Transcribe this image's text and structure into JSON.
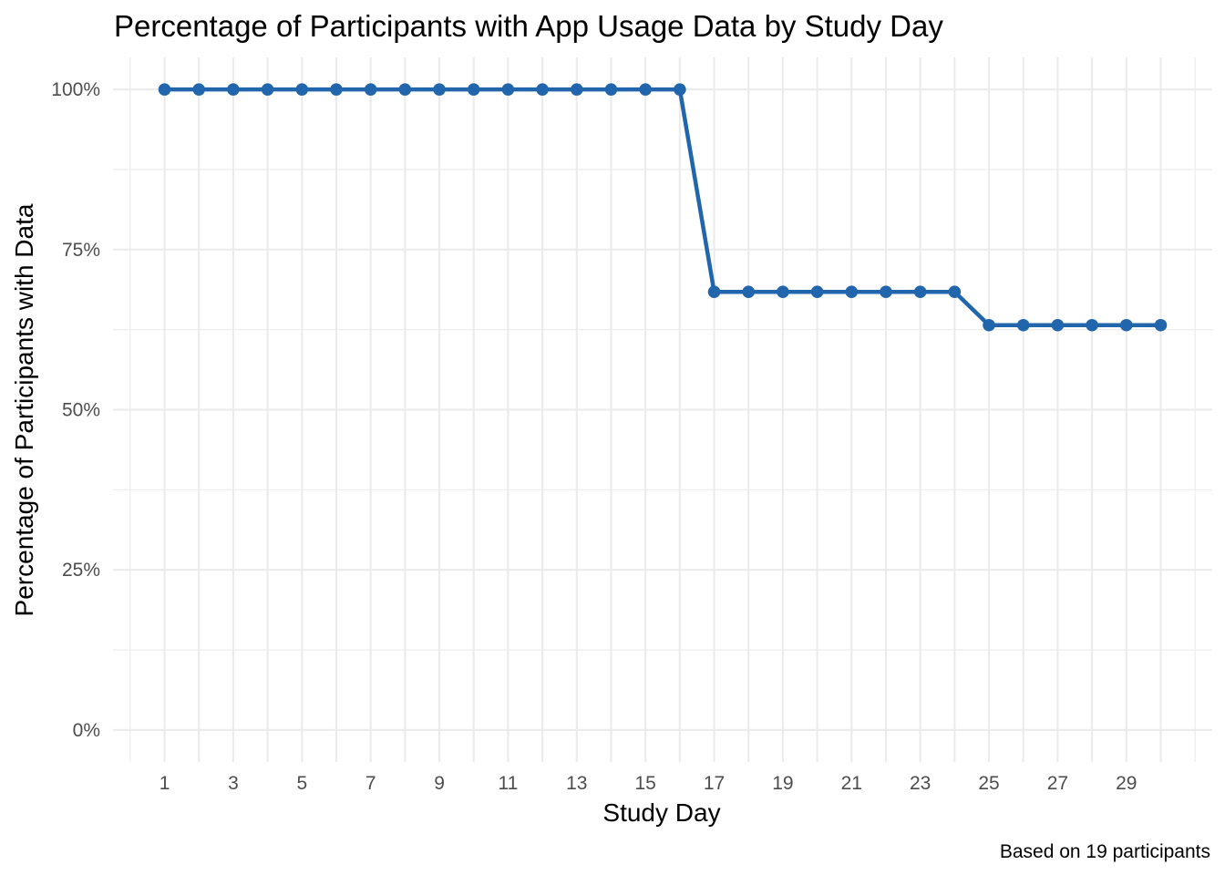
{
  "chart_data": {
    "type": "line",
    "title": "Percentage of Participants with App Usage Data by Study Day",
    "xlabel": "Study Day",
    "ylabel": "Percentage of Participants with Data",
    "caption": "Based on 19 participants",
    "x": [
      1,
      2,
      3,
      4,
      5,
      6,
      7,
      8,
      9,
      10,
      11,
      12,
      13,
      14,
      15,
      16,
      17,
      18,
      19,
      20,
      21,
      22,
      23,
      24,
      25,
      26,
      27,
      28,
      29,
      30
    ],
    "series": [
      {
        "values": [
          100,
          100,
          100,
          100,
          100,
          100,
          100,
          100,
          100,
          100,
          100,
          100,
          100,
          100,
          100,
          100,
          68.4,
          68.4,
          68.4,
          68.4,
          68.4,
          68.4,
          68.4,
          68.4,
          63.2,
          63.2,
          63.2,
          63.2,
          63.2,
          63.2
        ]
      }
    ],
    "xticks": [
      1,
      3,
      5,
      7,
      9,
      11,
      13,
      15,
      17,
      19,
      21,
      23,
      25,
      27,
      29
    ],
    "yticks": [
      0,
      25,
      50,
      75,
      100
    ],
    "ytick_labels": [
      "0%",
      "25%",
      "50%",
      "75%",
      "100%"
    ],
    "xlim": [
      -0.5,
      31.5
    ],
    "ylim": [
      -5,
      105
    ],
    "grid": true,
    "legend": "none",
    "colors": {
      "line": "#2166ac",
      "grid": "#ebebeb"
    }
  }
}
